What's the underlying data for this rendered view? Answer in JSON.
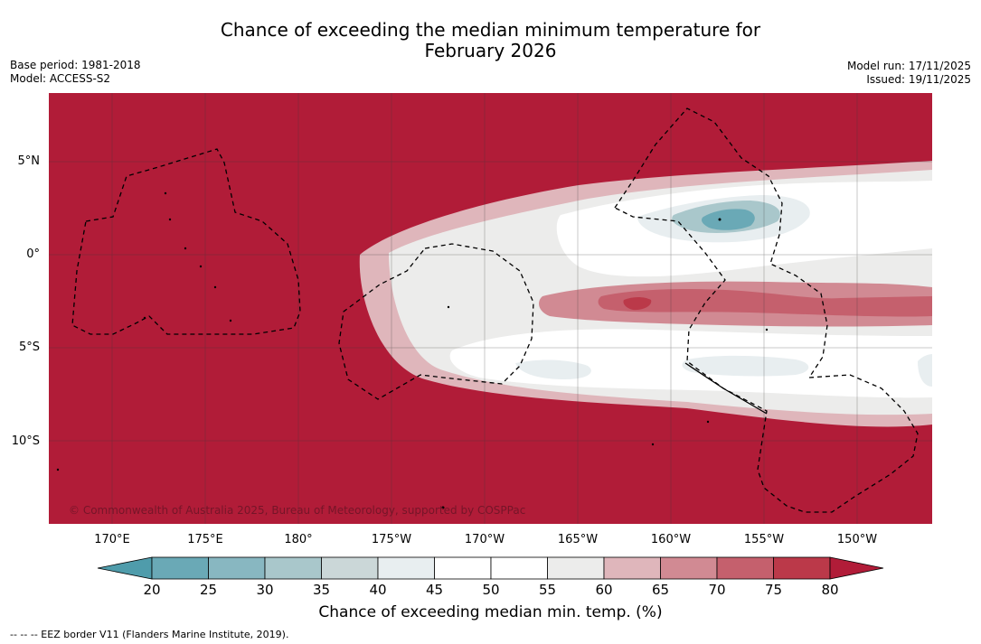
{
  "title_line1": "Chance of exceeding the median minimum temperature for",
  "title_line2": "February 2026",
  "base_period": "Base period: 1981-2018",
  "model": "Model: ACCESS-S2",
  "model_run": "Model run: 17/11/2025",
  "issued": "Issued: 19/11/2025",
  "copyright": "© Commonwealth of Australia 2025, Bureau of Meteorology, supported by COSPPac",
  "lat_labels": [
    "5°N",
    "0°",
    "5°S",
    "10°S"
  ],
  "lon_labels": [
    "170°E",
    "175°E",
    "180°",
    "175°W",
    "170°W",
    "165°W",
    "160°W",
    "155°W",
    "150°W"
  ],
  "colorbar": {
    "ticks": [
      "20",
      "25",
      "30",
      "35",
      "40",
      "45",
      "50",
      "55",
      "60",
      "65",
      "70",
      "75",
      "80"
    ],
    "title": "Chance of exceeding median min. temp. (%)",
    "colors": [
      "#4f9cab",
      "#6aa9b6",
      "#88b7c1",
      "#a9c7cb",
      "#cbd7d8",
      "#e8eef0",
      "#ffffff",
      "#ffffff",
      "#ececeb",
      "#dfb6bb",
      "#d18a93",
      "#c5606d",
      "#bb3949",
      "#b11c38"
    ]
  },
  "footer": "--  --  -- EEZ border V11 (Flanders Marine Institute, 2019).",
  "chart_data": {
    "type": "heatmap",
    "variable": "Chance of exceeding median minimum temperature (%)",
    "period": "February 2026",
    "lat_range": [
      "14S",
      "8.5N"
    ],
    "lon_range": [
      "167E",
      "147W"
    ],
    "value_range": [
      20,
      80
    ],
    "background_value": 80,
    "features": [
      {
        "region": "equatorial band north of equator, 163W-147W",
        "approx_value": 45
      },
      {
        "region": "center near 1.5N 159W",
        "approx_value": 25
      },
      {
        "region": "band near 3S, 167W-147W",
        "approx_value": 75
      },
      {
        "region": "band near 5-7S, 170W-147W",
        "approx_value": 45
      }
    ]
  }
}
